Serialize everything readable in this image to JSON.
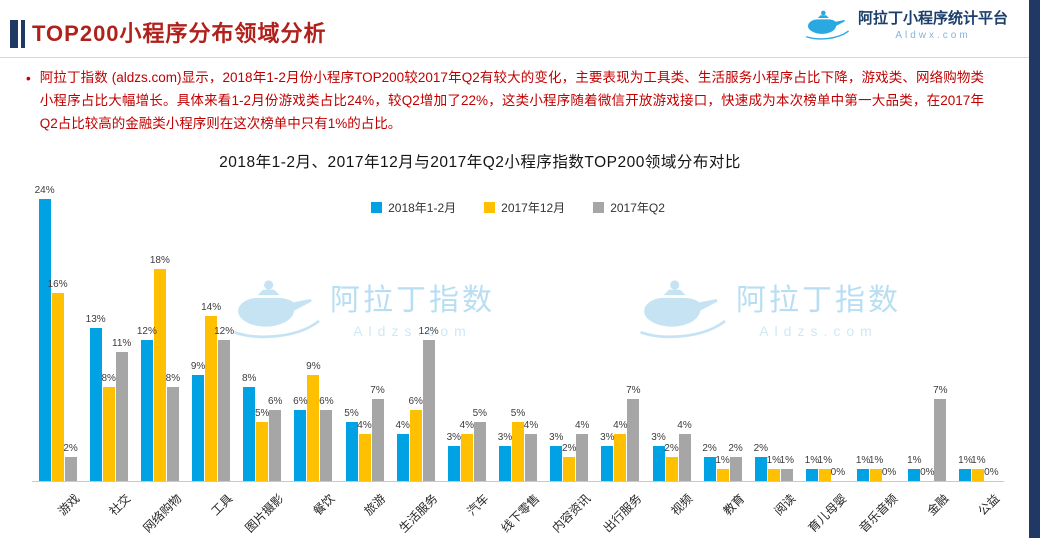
{
  "header": {
    "title": "TOP200小程序分布领域分析",
    "brand": {
      "name": "阿拉丁小程序统计平台",
      "domain": "Aldwx.com"
    }
  },
  "summary": {
    "bullet": "•",
    "text": "阿拉丁指数 (aldzs.com)显示，2018年1-2月份小程序TOP200较2017年Q2有较大的变化，主要表现为工具类、生活服务小程序占比下降，游戏类、网络购物类小程序占比大幅增长。具体来看1-2月份游戏类占比24%，较Q2增加了22%，这类小程序随着微信开放游戏接口，快速成为本次榜单中第一大品类，在2017年Q2占比较高的金融类小程序则在这次榜单中只有1%的占比。"
  },
  "watermark": {
    "title": "阿拉丁指数",
    "domain": "Aldzs.com"
  },
  "theme": {
    "accent_navy": "#1F3864",
    "title_red": "#B1211C",
    "paragraph_red": "#C00000",
    "series_blue": "#00A2E3",
    "series_yellow": "#FFC000",
    "series_gray": "#A6A6A6"
  },
  "chart_data": {
    "type": "bar",
    "title": "2018年1-2月、2017年12月与2017年Q2小程序指数TOP200领域分布对比",
    "categories": [
      "游戏",
      "社交",
      "网络购物",
      "工具",
      "图片摄影",
      "餐饮",
      "旅游",
      "生活服务",
      "汽车",
      "线下零售",
      "内容资讯",
      "出行服务",
      "视频",
      "教育",
      "阅读",
      "育儿母婴",
      "音乐音频",
      "金融",
      "公益"
    ],
    "series": [
      {
        "name": "2018年1-2月",
        "color": "#00A2E3",
        "values": [
          24,
          13,
          12,
          9,
          8,
          6,
          5,
          4,
          3,
          3,
          3,
          3,
          3,
          2,
          2,
          1,
          1,
          1,
          1
        ]
      },
      {
        "name": "2017年12月",
        "color": "#FFC000",
        "values": [
          16,
          8,
          18,
          14,
          5,
          9,
          4,
          6,
          4,
          5,
          2,
          4,
          2,
          1,
          1,
          1,
          1,
          0,
          1
        ]
      },
      {
        "name": "2017年Q2",
        "color": "#A6A6A6",
        "values": [
          2,
          11,
          8,
          12,
          6,
          6,
          7,
          12,
          5,
          4,
          4,
          7,
          4,
          2,
          1,
          0,
          0,
          7,
          0
        ]
      }
    ],
    "value_suffix": "%",
    "ylim": [
      0,
      24
    ],
    "grid": false,
    "legend_position": "top",
    "xlabel": "",
    "ylabel": ""
  }
}
